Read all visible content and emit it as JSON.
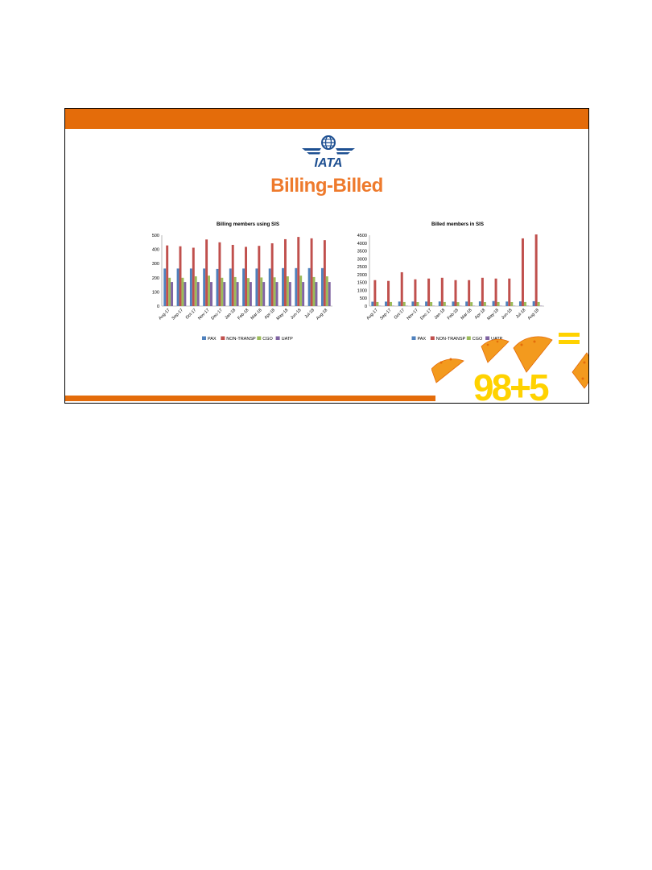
{
  "slide": {
    "title": "Billing-Billed",
    "logo_text": "IATA",
    "badge_text": "98+5",
    "colors": {
      "bar": "#e46c0a",
      "title": "#ee7a2c",
      "logo": "#1d4f91",
      "accent": "#ffd200"
    }
  },
  "chart_data": [
    {
      "type": "bar",
      "title": "Billing members using SIS",
      "categories": [
        "Aug-17",
        "Sep-17",
        "Oct-17",
        "Nov-17",
        "Dec-17",
        "Jan-18",
        "Feb-18",
        "Mar-18",
        "Apr-18",
        "May-18",
        "Jun-18",
        "Jul-18",
        "Aug-18"
      ],
      "series": [
        {
          "name": "PAX",
          "color": "#4f81bd",
          "values": [
            265,
            265,
            265,
            265,
            262,
            265,
            265,
            265,
            265,
            268,
            268,
            268,
            268
          ]
        },
        {
          "name": "NON-TRANSP",
          "color": "#c0504d",
          "values": [
            428,
            422,
            412,
            470,
            450,
            432,
            418,
            425,
            443,
            472,
            488,
            478,
            465
          ]
        },
        {
          "name": "CGO",
          "color": "#9bbb59",
          "values": [
            200,
            200,
            210,
            215,
            200,
            205,
            198,
            202,
            203,
            210,
            215,
            205,
            210
          ]
        },
        {
          "name": "UATP",
          "color": "#8064a2",
          "values": [
            170,
            170,
            170,
            170,
            170,
            170,
            170,
            170,
            170,
            170,
            170,
            170,
            170
          ]
        }
      ],
      "ylim": [
        0,
        500
      ],
      "yticks": [
        0,
        100,
        200,
        300,
        400,
        500
      ],
      "legend": "bottom",
      "grid": false
    },
    {
      "type": "bar",
      "title": "Billed members in SIS",
      "categories": [
        "Aug-17",
        "Sep-17",
        "Oct-17",
        "Nov-17",
        "Dec-17",
        "Jan-18",
        "Feb-18",
        "Mar-18",
        "Apr-18",
        "May-18",
        "Jun-18",
        "Jul-18",
        "Aug-18"
      ],
      "series": [
        {
          "name": "PAX",
          "color": "#4f81bd",
          "values": [
            280,
            285,
            290,
            290,
            290,
            295,
            290,
            290,
            300,
            320,
            290,
            300,
            310
          ]
        },
        {
          "name": "NON-TRANSP",
          "color": "#c0504d",
          "values": [
            1650,
            1600,
            2150,
            1700,
            1750,
            1800,
            1650,
            1650,
            1800,
            1750,
            1750,
            4300,
            4550
          ]
        },
        {
          "name": "CGO",
          "color": "#9bbb59",
          "values": [
            260,
            260,
            260,
            255,
            255,
            260,
            250,
            250,
            255,
            260,
            255,
            260,
            260
          ]
        },
        {
          "name": "UATP",
          "color": "#8064a2",
          "values": [
            20,
            20,
            20,
            20,
            20,
            20,
            20,
            20,
            20,
            20,
            20,
            20,
            20
          ]
        }
      ],
      "ylim": [
        0,
        4500
      ],
      "yticks": [
        0,
        500,
        1000,
        1500,
        2000,
        2500,
        3000,
        3500,
        4000,
        4500
      ],
      "legend": "bottom",
      "grid": false
    }
  ]
}
